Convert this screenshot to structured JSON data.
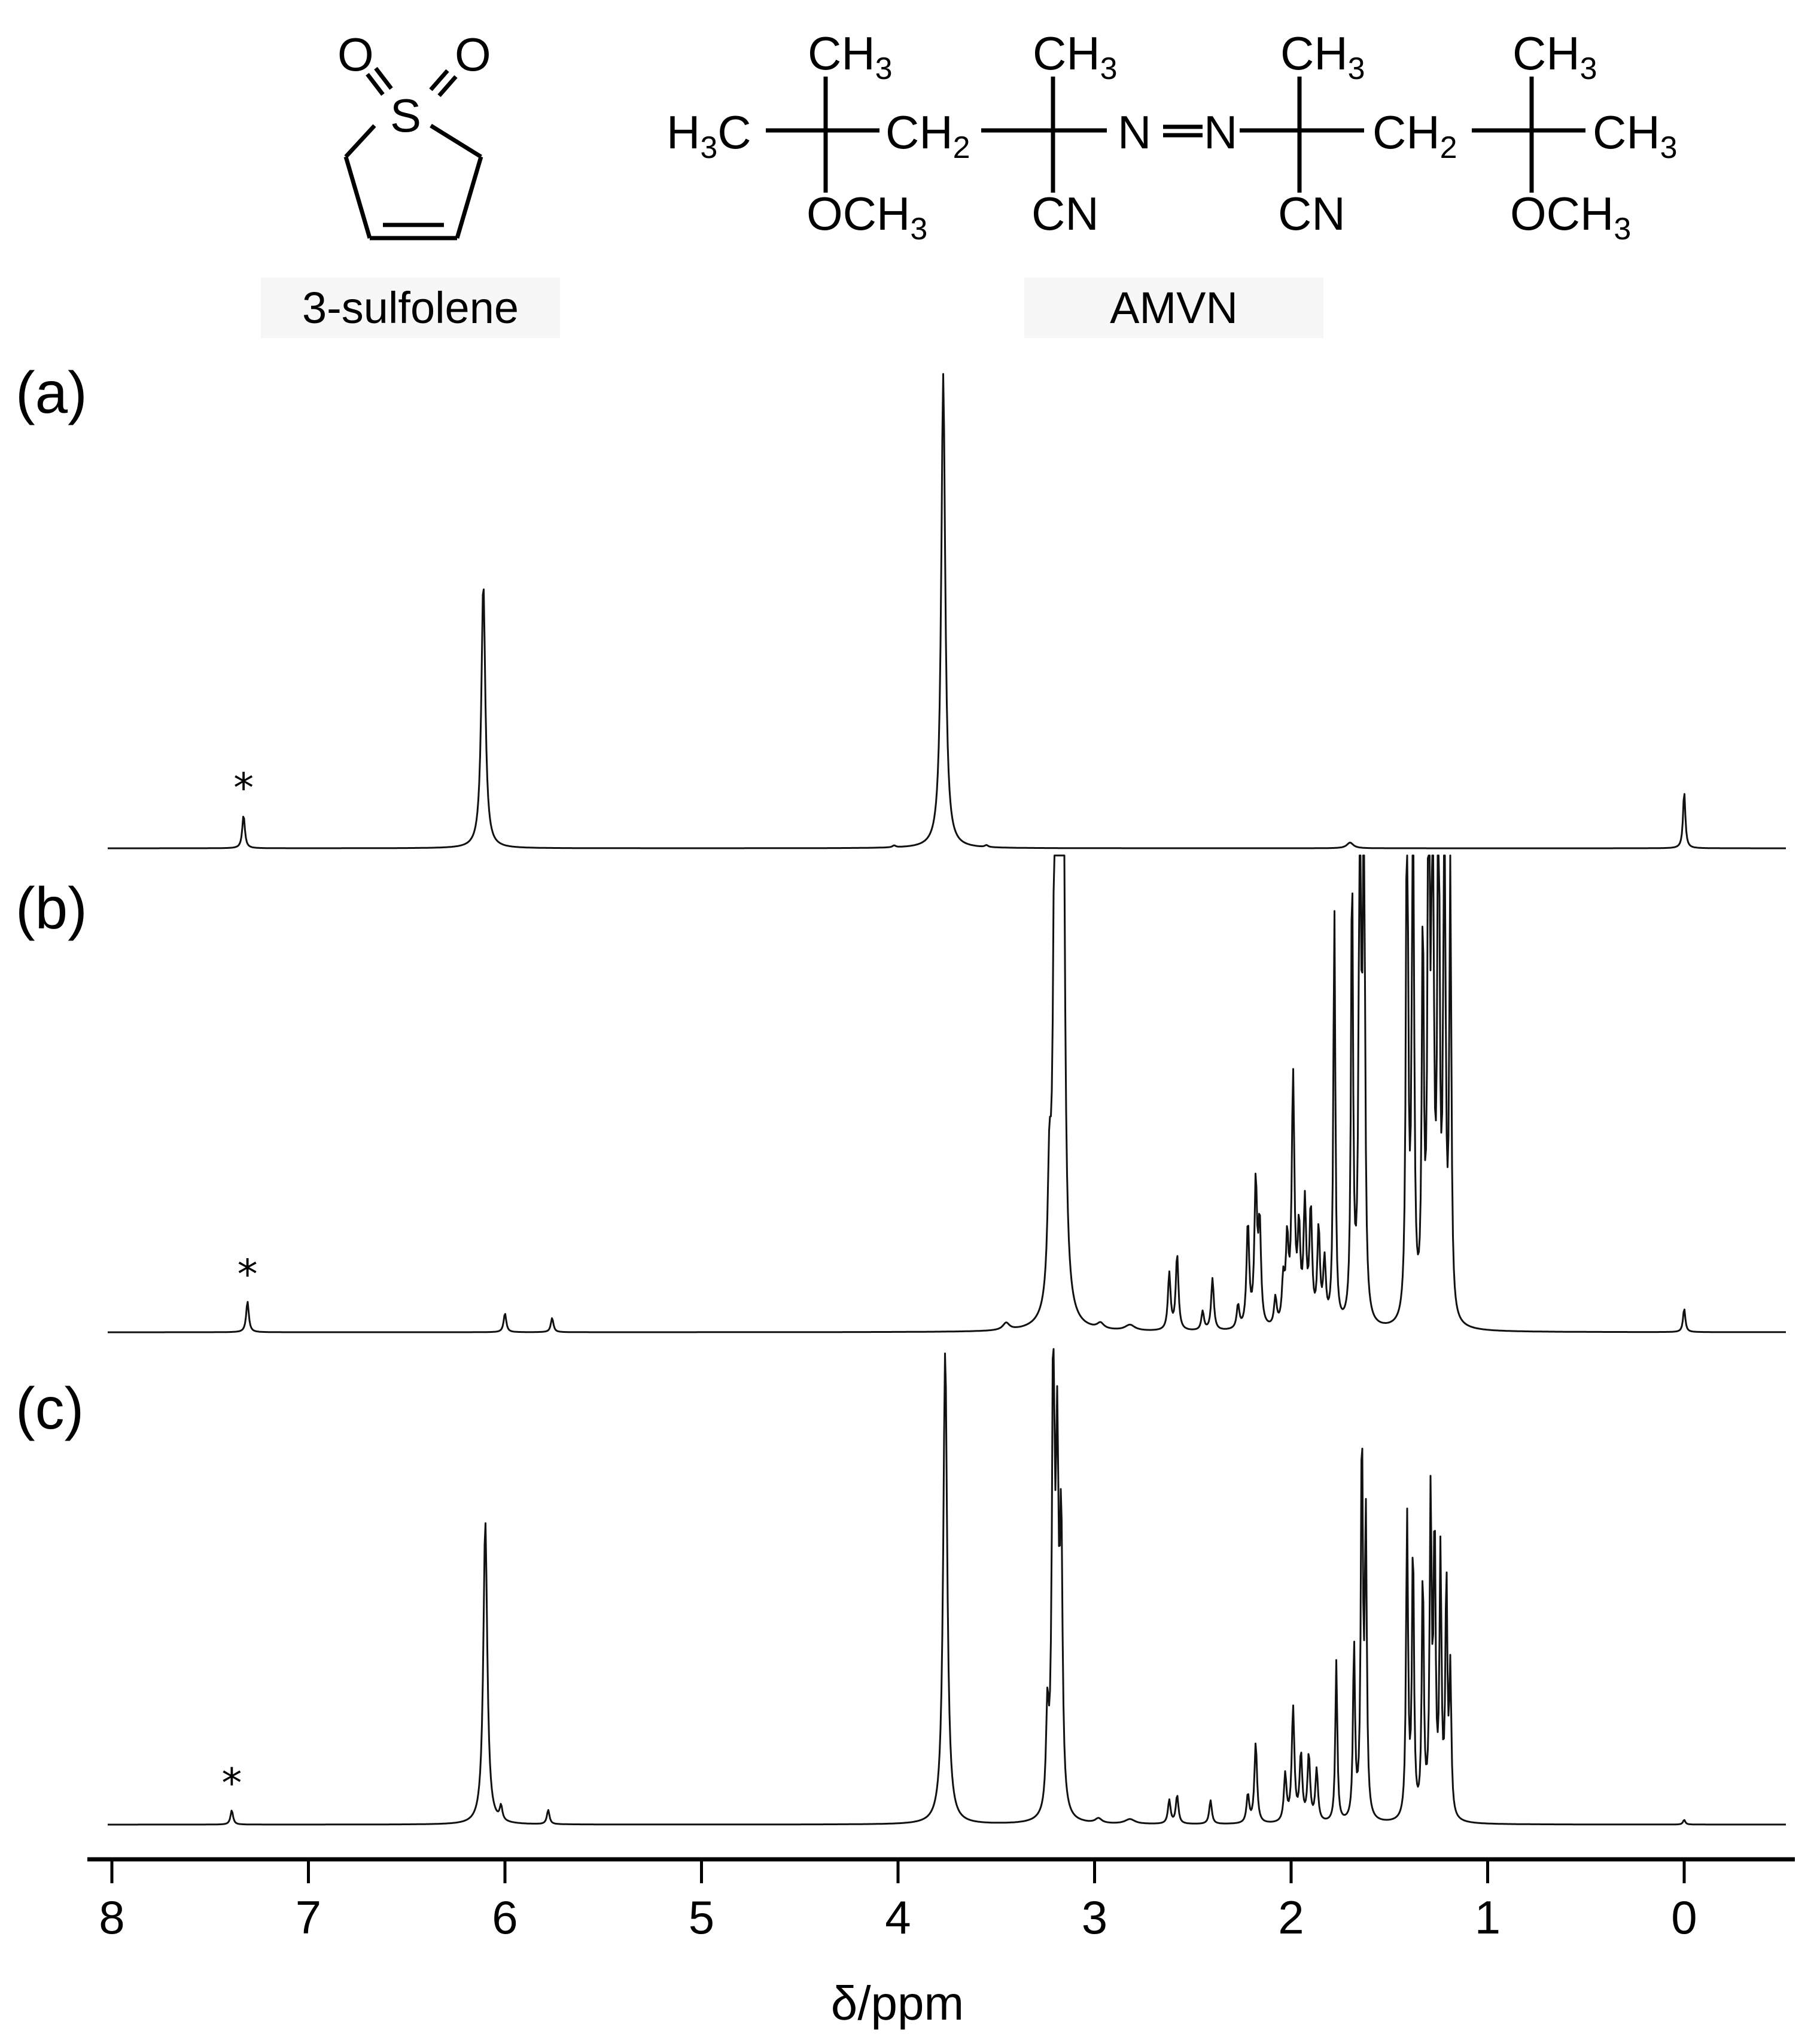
{
  "structures": {
    "sulfolene_label": "3-sulfolene",
    "amvn_label": "AMVN"
  },
  "panels": [
    {
      "label": "(a)"
    },
    {
      "label": "(b)"
    },
    {
      "label": "(c)"
    }
  ],
  "chart_data": {
    "type": "line",
    "title": "",
    "xlabel": "δ/ppm",
    "ylabel": "",
    "xlim": [
      8.1,
      -0.5
    ],
    "x_reversed": true,
    "xticks": [
      8,
      7,
      6,
      5,
      4,
      3,
      2,
      1,
      0
    ],
    "grid": false,
    "marker_symbol": "*",
    "spectra": [
      {
        "panel": "(a)",
        "marker_ppm": 7.33,
        "peaks": [
          {
            "ppm": 7.33,
            "height": 0.07,
            "width": 0.008
          },
          {
            "ppm": 6.11,
            "height": 0.56,
            "width": 0.012
          },
          {
            "ppm": 3.77,
            "height": 1.0,
            "width": 0.012
          },
          {
            "ppm": 4.02,
            "height": 0.004,
            "width": 0.01
          },
          {
            "ppm": 3.55,
            "height": 0.004,
            "width": 0.01
          },
          {
            "ppm": 1.7,
            "height": 0.012,
            "width": 0.02
          },
          {
            "ppm": 0.0,
            "height": 0.12,
            "width": 0.007
          }
        ]
      },
      {
        "panel": "(b)",
        "marker_ppm": 7.31,
        "clipped": true,
        "peaks": [
          {
            "ppm": 7.31,
            "height": 0.065,
            "width": 0.008
          },
          {
            "ppm": 6.0,
            "height": 0.04,
            "width": 0.008
          },
          {
            "ppm": 5.76,
            "height": 0.03,
            "width": 0.008
          },
          {
            "ppm": 3.45,
            "height": 0.015,
            "width": 0.02
          },
          {
            "ppm": 3.23,
            "height": 0.25,
            "width": 0.01
          },
          {
            "ppm": 3.2,
            "height": 1.2,
            "width": 0.01
          },
          {
            "ppm": 3.18,
            "height": 1.3,
            "width": 0.01
          },
          {
            "ppm": 3.16,
            "height": 1.1,
            "width": 0.01
          },
          {
            "ppm": 2.97,
            "height": 0.012,
            "width": 0.02
          },
          {
            "ppm": 2.82,
            "height": 0.012,
            "width": 0.03
          },
          {
            "ppm": 2.62,
            "height": 0.12,
            "width": 0.008
          },
          {
            "ppm": 2.58,
            "height": 0.16,
            "width": 0.008
          },
          {
            "ppm": 2.45,
            "height": 0.04,
            "width": 0.008
          },
          {
            "ppm": 2.4,
            "height": 0.11,
            "width": 0.008
          },
          {
            "ppm": 2.27,
            "height": 0.05,
            "width": 0.008
          },
          {
            "ppm": 2.22,
            "height": 0.22,
            "width": 0.008
          },
          {
            "ppm": 2.18,
            "height": 0.3,
            "width": 0.008
          },
          {
            "ppm": 2.16,
            "height": 0.21,
            "width": 0.008
          },
          {
            "ppm": 2.08,
            "height": 0.06,
            "width": 0.008
          },
          {
            "ppm": 2.04,
            "height": 0.09,
            "width": 0.008
          },
          {
            "ppm": 2.02,
            "height": 0.17,
            "width": 0.008
          },
          {
            "ppm": 1.99,
            "height": 0.52,
            "width": 0.008
          },
          {
            "ppm": 1.96,
            "height": 0.19,
            "width": 0.008
          },
          {
            "ppm": 1.93,
            "height": 0.25,
            "width": 0.008
          },
          {
            "ppm": 1.9,
            "height": 0.24,
            "width": 0.008
          },
          {
            "ppm": 1.86,
            "height": 0.2,
            "width": 0.008
          },
          {
            "ppm": 1.83,
            "height": 0.13,
            "width": 0.008
          },
          {
            "ppm": 1.78,
            "height": 0.88,
            "width": 0.006
          },
          {
            "ppm": 1.69,
            "height": 0.97,
            "width": 0.006
          },
          {
            "ppm": 1.65,
            "height": 1.3,
            "width": 0.006
          },
          {
            "ppm": 1.63,
            "height": 1.3,
            "width": 0.006
          },
          {
            "ppm": 1.41,
            "height": 1.3,
            "width": 0.006
          },
          {
            "ppm": 1.38,
            "height": 1.3,
            "width": 0.006
          },
          {
            "ppm": 1.33,
            "height": 0.82,
            "width": 0.006
          },
          {
            "ppm": 1.3,
            "height": 1.3,
            "width": 0.006
          },
          {
            "ppm": 1.28,
            "height": 1.3,
            "width": 0.006
          },
          {
            "ppm": 1.25,
            "height": 1.3,
            "width": 0.006
          },
          {
            "ppm": 1.22,
            "height": 1.3,
            "width": 0.006
          },
          {
            "ppm": 1.19,
            "height": 0.95,
            "width": 0.006
          },
          {
            "ppm": 0.0,
            "height": 0.05,
            "width": 0.007
          }
        ]
      },
      {
        "panel": "(c)",
        "marker_ppm": 7.39,
        "peaks": [
          {
            "ppm": 7.39,
            "height": 0.03,
            "width": 0.008
          },
          {
            "ppm": 6.1,
            "height": 0.64,
            "width": 0.012
          },
          {
            "ppm": 6.02,
            "height": 0.03,
            "width": 0.008
          },
          {
            "ppm": 5.78,
            "height": 0.03,
            "width": 0.008
          },
          {
            "ppm": 3.76,
            "height": 1.0,
            "width": 0.012
          },
          {
            "ppm": 3.24,
            "height": 0.2,
            "width": 0.008
          },
          {
            "ppm": 3.21,
            "height": 1.0,
            "width": 0.008
          },
          {
            "ppm": 3.19,
            "height": 0.7,
            "width": 0.008
          },
          {
            "ppm": 3.17,
            "height": 0.58,
            "width": 0.008
          },
          {
            "ppm": 2.98,
            "height": 0.01,
            "width": 0.02
          },
          {
            "ppm": 2.82,
            "height": 0.01,
            "width": 0.03
          },
          {
            "ppm": 2.62,
            "height": 0.05,
            "width": 0.008
          },
          {
            "ppm": 2.58,
            "height": 0.06,
            "width": 0.008
          },
          {
            "ppm": 2.41,
            "height": 0.05,
            "width": 0.008
          },
          {
            "ppm": 2.22,
            "height": 0.06,
            "width": 0.008
          },
          {
            "ppm": 2.18,
            "height": 0.17,
            "width": 0.008
          },
          {
            "ppm": 2.03,
            "height": 0.1,
            "width": 0.008
          },
          {
            "ppm": 1.99,
            "height": 0.24,
            "width": 0.008
          },
          {
            "ppm": 1.95,
            "height": 0.14,
            "width": 0.008
          },
          {
            "ppm": 1.91,
            "height": 0.14,
            "width": 0.008
          },
          {
            "ppm": 1.87,
            "height": 0.11,
            "width": 0.008
          },
          {
            "ppm": 1.77,
            "height": 0.34,
            "width": 0.006
          },
          {
            "ppm": 1.68,
            "height": 0.37,
            "width": 0.006
          },
          {
            "ppm": 1.64,
            "height": 0.82,
            "width": 0.006
          },
          {
            "ppm": 1.62,
            "height": 0.62,
            "width": 0.006
          },
          {
            "ppm": 1.41,
            "height": 0.64,
            "width": 0.006
          },
          {
            "ppm": 1.38,
            "height": 0.58,
            "width": 0.006
          },
          {
            "ppm": 1.33,
            "height": 0.52,
            "width": 0.006
          },
          {
            "ppm": 1.29,
            "height": 0.67,
            "width": 0.006
          },
          {
            "ppm": 1.27,
            "height": 0.6,
            "width": 0.006
          },
          {
            "ppm": 1.24,
            "height": 0.55,
            "width": 0.006
          },
          {
            "ppm": 1.21,
            "height": 0.5,
            "width": 0.006
          },
          {
            "ppm": 1.19,
            "height": 0.3,
            "width": 0.006
          },
          {
            "ppm": 0.0,
            "height": 0.01,
            "width": 0.007
          }
        ]
      }
    ]
  }
}
